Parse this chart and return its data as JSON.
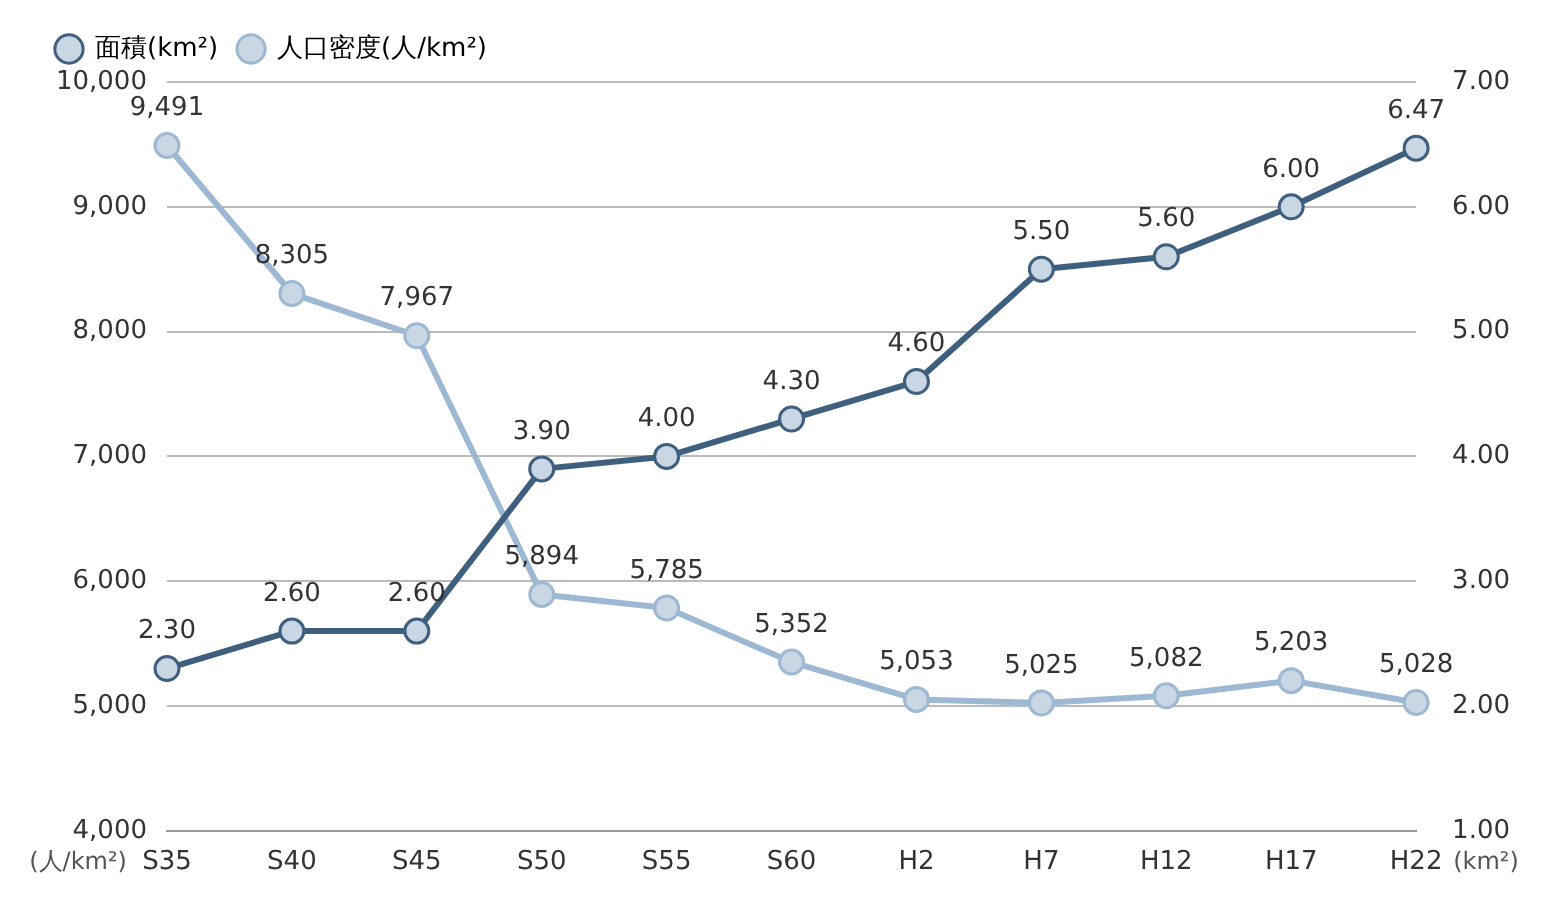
{
  "chart_data": {
    "type": "line",
    "categories": [
      "S35",
      "S40",
      "S45",
      "S50",
      "S55",
      "S60",
      "H2",
      "H7",
      "H12",
      "H17",
      "H22"
    ],
    "ylabel": "(人/km²)",
    "y2label": "(km²)",
    "series": [
      {
        "name": "面積(km²)",
        "color": "#3f5f7f",
        "axis": "y2",
        "values": [
          2.3,
          2.6,
          2.6,
          3.9,
          4.0,
          4.3,
          4.6,
          5.5,
          5.6,
          6.0,
          6.47
        ],
        "value_labels": [
          "2.30",
          "2.60",
          "2.60",
          "3.90",
          "4.00",
          "4.30",
          "4.60",
          "5.50",
          "5.60",
          "6.00",
          "6.47"
        ]
      },
      {
        "name": "人口密度(人/km²)",
        "color": "#9db8d2",
        "values": [
          9491,
          8305,
          7967,
          5894,
          5785,
          5352,
          5053,
          5025,
          5082,
          5203,
          5028
        ],
        "value_labels": [
          "9,491",
          "8,305",
          "7,967",
          "5,894",
          "5,785",
          "5,352",
          "5,053",
          "5,025",
          "5,082",
          "5,203",
          "5,028"
        ]
      }
    ],
    "ylim": [
      4000,
      10000
    ],
    "yticks": [
      {
        "value": 4000,
        "label": "4,000"
      },
      {
        "value": 5000,
        "label": "5,000"
      },
      {
        "value": 6000,
        "label": "6,000"
      },
      {
        "value": 7000,
        "label": "7,000"
      },
      {
        "value": 8000,
        "label": "8,000"
      },
      {
        "value": 9000,
        "label": "9,000"
      },
      {
        "value": 10000,
        "label": "10,000"
      }
    ],
    "y2lim": [
      1,
      7
    ],
    "y2ticks": [
      {
        "value": 1,
        "label": "1.00"
      },
      {
        "value": 2,
        "label": "2.00"
      },
      {
        "value": 3,
        "label": "3.00"
      },
      {
        "value": 4,
        "label": "4.00"
      },
      {
        "value": 5,
        "label": "5.00"
      },
      {
        "value": 6,
        "label": "6.00"
      },
      {
        "value": 7,
        "label": "7.00"
      }
    ],
    "grid": "y",
    "legend": "top left",
    "marker": "circle",
    "line_style": "solid"
  }
}
